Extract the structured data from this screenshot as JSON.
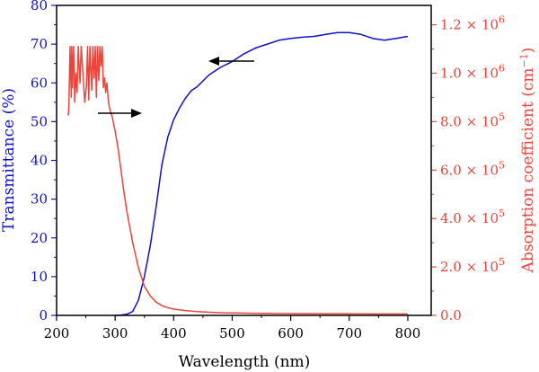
{
  "chart_data": {
    "type": "line",
    "xlabel": "Wavelength (nm)",
    "ylabel_left": "Transmittance (%)",
    "ylabel_right_prefix": "Absorption coefficient (cm",
    "ylabel_right_sup": "−1",
    "ylabel_right_suffix": ")",
    "xlim": [
      200,
      840
    ],
    "ylim_left": [
      0,
      80
    ],
    "ylim_right": [
      0,
      1280000
    ],
    "x_ticks": [
      200,
      300,
      400,
      500,
      600,
      700,
      800
    ],
    "y_ticks_left": [
      0,
      10,
      20,
      30,
      40,
      50,
      60,
      70,
      80
    ],
    "y_ticks_right": [
      {
        "mantissa": "0.0",
        "exp": ""
      },
      {
        "mantissa": "2.0",
        "exp": "5"
      },
      {
        "mantissa": "4.0",
        "exp": "5"
      },
      {
        "mantissa": "6.0",
        "exp": "5"
      },
      {
        "mantissa": "8.0",
        "exp": "5"
      },
      {
        "mantissa": "1.0",
        "exp": "6"
      },
      {
        "mantissa": "1.2",
        "exp": "6"
      }
    ],
    "colors": {
      "left": "#1010c8",
      "right": "#e8453c",
      "frame": "#000000"
    },
    "series": [
      {
        "axis": "left",
        "color": "#1010c8",
        "x": [
          300,
          310,
          320,
          330,
          340,
          350,
          360,
          370,
          380,
          390,
          400,
          410,
          420,
          430,
          440,
          450,
          460,
          470,
          480,
          500,
          520,
          540,
          560,
          580,
          600,
          620,
          640,
          660,
          680,
          700,
          720,
          740,
          760,
          780,
          800
        ],
        "y": [
          0,
          0.1,
          0.3,
          1,
          4,
          10,
          18,
          28,
          39,
          46,
          50.5,
          53.5,
          56,
          58,
          59,
          60.5,
          62,
          63,
          64,
          65.5,
          67.5,
          69,
          70,
          71,
          71.5,
          71.8,
          72,
          72.5,
          73,
          73,
          72.5,
          71.5,
          71,
          71.5,
          72
        ]
      },
      {
        "axis": "right",
        "color": "#e8453c",
        "x": [
          220,
          221,
          223,
          225,
          226,
          227,
          229,
          231,
          233,
          235,
          237,
          240,
          242,
          245,
          248,
          251,
          253,
          255,
          257,
          260,
          262,
          264,
          266,
          268,
          270,
          272,
          274,
          276,
          278,
          280,
          282,
          284,
          286,
          288,
          290,
          295,
          300,
          305,
          310,
          315,
          320,
          330,
          340,
          350,
          360,
          370,
          380,
          390,
          400,
          420,
          440,
          460,
          480,
          500,
          550,
          600,
          650,
          700,
          750,
          800
        ],
        "y": [
          825000,
          870000,
          1110000,
          900000,
          1110000,
          940000,
          1110000,
          880000,
          1000000,
          920000,
          1110000,
          960000,
          1110000,
          1000000,
          880000,
          950000,
          1110000,
          890000,
          1110000,
          930000,
          1110000,
          980000,
          1110000,
          900000,
          1110000,
          970000,
          1110000,
          1030000,
          1110000,
          940000,
          980000,
          920000,
          960000,
          900000,
          860000,
          820000,
          760000,
          690000,
          600000,
          510000,
          430000,
          300000,
          195000,
          120000,
          80000,
          55000,
          40000,
          32000,
          26000,
          20000,
          16000,
          13000,
          11000,
          10000,
          8000,
          7500,
          7000,
          6500,
          6000,
          6000
        ]
      }
    ]
  }
}
